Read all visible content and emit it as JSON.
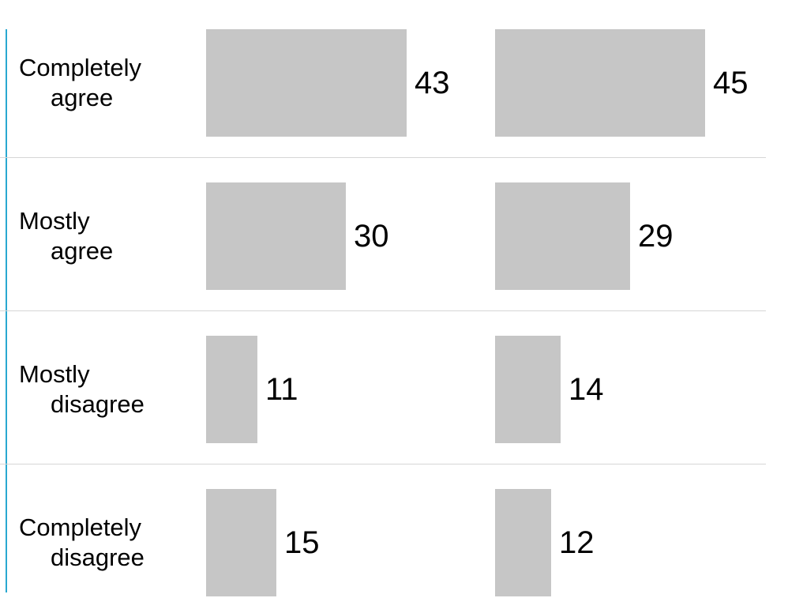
{
  "chart_data": {
    "type": "bar",
    "orientation": "horizontal",
    "categories": [
      [
        "Completely",
        "agree"
      ],
      [
        "Mostly",
        "agree"
      ],
      [
        "Mostly",
        "disagree"
      ],
      [
        "Completely",
        "disagree"
      ]
    ],
    "series": [
      {
        "values": [
          43,
          30,
          11,
          15
        ]
      },
      {
        "values": [
          45,
          29,
          14,
          12
        ]
      }
    ],
    "title": "",
    "xlabel": "",
    "ylabel": "",
    "grid": false,
    "colors": {
      "bar": "#c6c6c6",
      "axis_line": "#29a8d0",
      "separator": "#d6d6d6"
    }
  }
}
